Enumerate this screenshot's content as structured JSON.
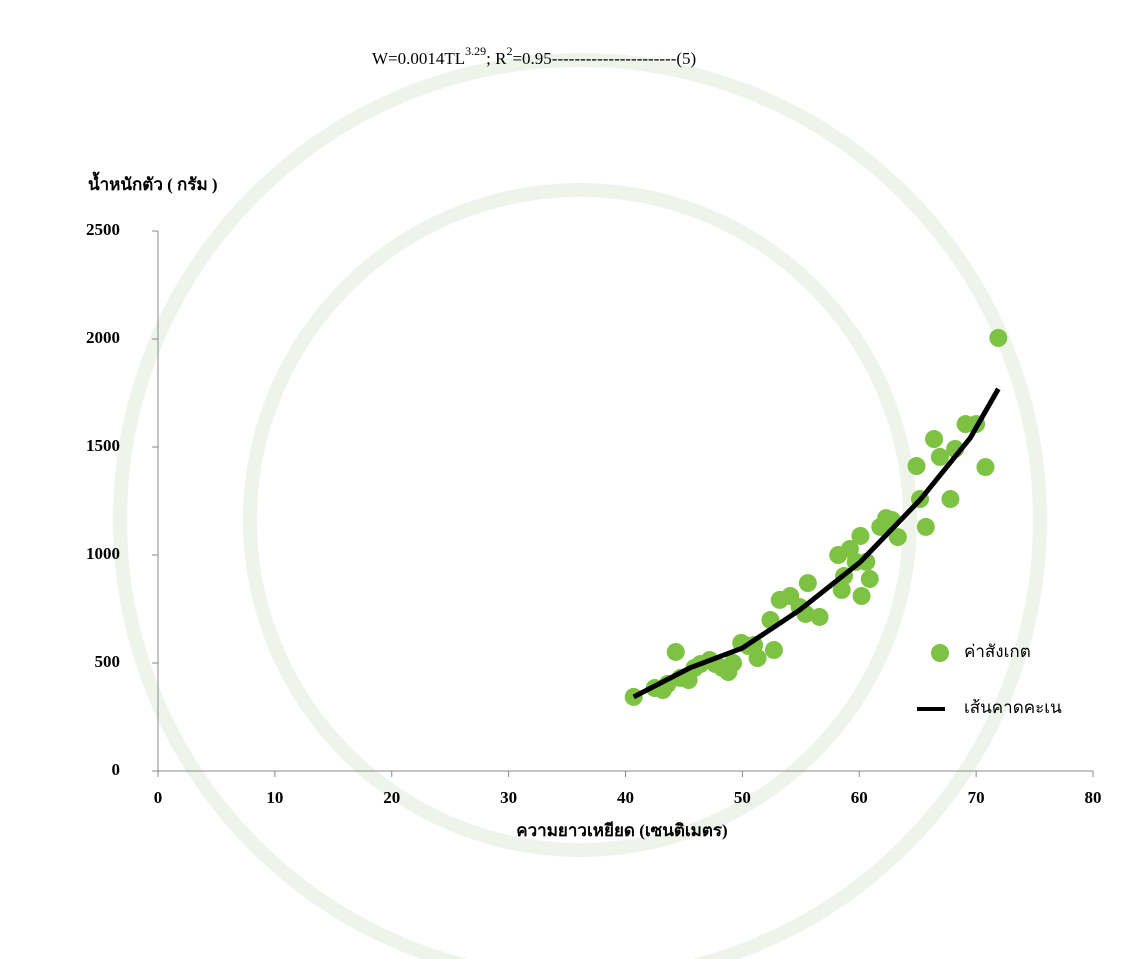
{
  "chart_data": {
    "type": "scatter",
    "title": {
      "parts": [
        "W=0.0014TL",
        "3.29",
        "; R",
        "2",
        "=0.95----------------------(5)"
      ]
    },
    "y_label": "น้ำหนักตัว ( กรัม )",
    "x_label": "ความยาวเหยียด (เซนติเมตร)",
    "xlim": [
      0,
      80
    ],
    "xticks": [
      0,
      10,
      20,
      30,
      40,
      50,
      60,
      70,
      80
    ],
    "ylim": [
      0,
      2500
    ],
    "yticks": [
      0,
      500,
      1000,
      1500,
      2000,
      2500
    ],
    "legend": "right",
    "series": [
      {
        "name": "ค่าสังเกต",
        "color": "#7dc242",
        "type": "scatter",
        "x": [
          40.7,
          42.5,
          43.2,
          43.6,
          44.3,
          44.7,
          45.4,
          45.9,
          46.4,
          47.2,
          47.7,
          48.3,
          48.8,
          49.2,
          49.9,
          50.5,
          51.0,
          51.3,
          52.4,
          52.7,
          53.2,
          54.1,
          54.9,
          55.4,
          55.6,
          56.6,
          58.2,
          58.5,
          58.7,
          59.2,
          59.7,
          60.1,
          60.2,
          60.6,
          60.9,
          61.8,
          62.3,
          62.8,
          63.3,
          64.9,
          65.2,
          65.7,
          66.4,
          66.9,
          67.8,
          68.2,
          69.1,
          70.0,
          70.8,
          71.9
        ],
        "values": [
          343,
          384,
          375,
          403,
          551,
          431,
          421,
          477,
          495,
          514,
          495,
          477,
          458,
          500,
          593,
          579,
          583,
          523,
          699,
          560,
          792,
          810,
          759,
          727,
          870,
          713,
          1000,
          838,
          903,
          1028,
          968,
          1088,
          810,
          968,
          889,
          1130,
          1171,
          1162,
          1083,
          1412,
          1259,
          1130,
          1537,
          1454,
          1259,
          1491,
          1606,
          1606,
          1407,
          2005
        ]
      },
      {
        "name": "เส้นคาดคะเน",
        "color": "#000000",
        "type": "line",
        "x": [
          40.7,
          45.5,
          50,
          54.9,
          60.1,
          65.2,
          69.5,
          71.9
        ],
        "values": [
          343,
          477,
          569,
          745,
          968,
          1255,
          1542,
          1769
        ]
      }
    ]
  }
}
